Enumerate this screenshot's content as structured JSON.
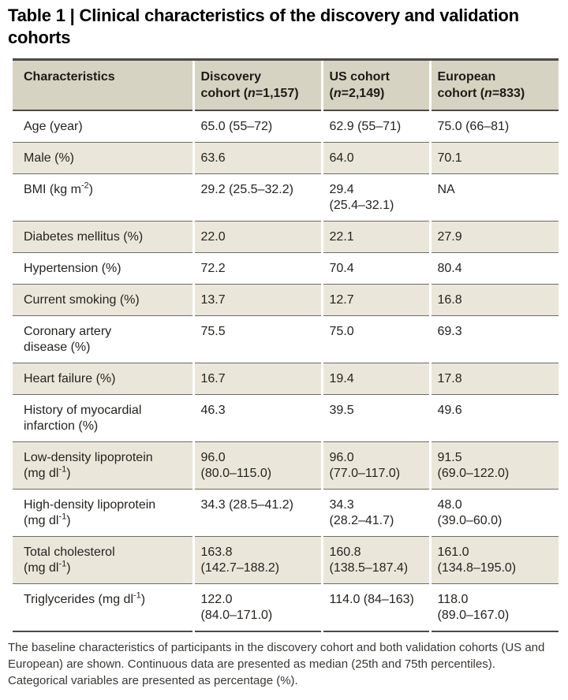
{
  "title": "Table 1 | Clinical characteristics of the discovery and validation cohorts",
  "table": {
    "columns": [
      "Characteristics",
      "Discovery\ncohort (n=1,157)",
      "US cohort\n(n=2,149)",
      "European\ncohort (n=833)"
    ],
    "rows": [
      {
        "label": "Age (year)",
        "values": [
          "65.0 (55–72)",
          "62.9 (55–71)",
          "75.0 (66–81)"
        ]
      },
      {
        "label": "Male (%)",
        "values": [
          "63.6",
          "64.0",
          "70.1"
        ]
      },
      {
        "label": "BMI (kg m⁻²)",
        "values": [
          "29.2 (25.5–32.2)",
          "29.4\n(25.4–32.1)",
          "NA"
        ]
      },
      {
        "label": "Diabetes mellitus (%)",
        "values": [
          "22.0",
          "22.1",
          "27.9"
        ]
      },
      {
        "label": "Hypertension (%)",
        "values": [
          "72.2",
          "70.4",
          "80.4"
        ]
      },
      {
        "label": "Current smoking (%)",
        "values": [
          "13.7",
          "12.7",
          "16.8"
        ]
      },
      {
        "label": "Coronary artery\ndisease (%)",
        "values": [
          "75.5",
          "75.0",
          "69.3"
        ]
      },
      {
        "label": "Heart failure (%)",
        "values": [
          "16.7",
          "19.4",
          "17.8"
        ]
      },
      {
        "label": "History of myocardial\ninfarction (%)",
        "values": [
          "46.3",
          "39.5",
          "49.6"
        ]
      },
      {
        "label": "Low-density lipoprotein\n(mg dl⁻¹)",
        "values": [
          "96.0\n(80.0–115.0)",
          "96.0\n(77.0–117.0)",
          "91.5\n(69.0–122.0)"
        ]
      },
      {
        "label": "High-density lipoprotein\n(mg dl⁻¹)",
        "values": [
          "34.3 (28.5–41.2)",
          "34.3\n(28.2–41.7)",
          "48.0\n(39.0–60.0)"
        ]
      },
      {
        "label": "Total cholesterol\n(mg dl⁻¹)",
        "values": [
          "163.8\n(142.7–188.2)",
          "160.8\n(138.5–187.4)",
          "161.0\n(134.8–195.0)"
        ]
      },
      {
        "label": "Triglycerides (mg dl⁻¹)",
        "values": [
          "122.0\n(84.0–171.0)",
          "114.0 (84–163)",
          "118.0\n(89.0–167.0)"
        ]
      }
    ]
  },
  "footnote": "The baseline characteristics of participants in the discovery cohort and both validation cohorts (US and European) are shown. Continuous data are presented as median (25th and 75th percentiles). Categorical variables are presented as percentage (%).",
  "colors": {
    "header_background": "#d7d3c2",
    "shaded_row_background": "#eae7da",
    "rule_dark": "#4c4a46",
    "rule_row": "#6d6b65",
    "text": "#262320"
  }
}
